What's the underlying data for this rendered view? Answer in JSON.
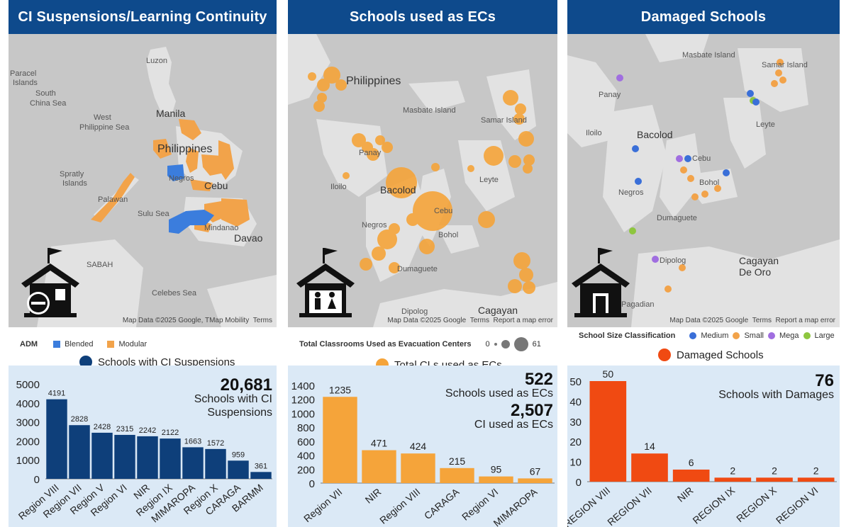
{
  "panels": {
    "p1": {
      "title": "CI Suspensions/Learning Continuity",
      "map_labels": {
        "luzon": "Luzon",
        "manila": "Manila",
        "philippines": "Philippines",
        "west_ps": "West",
        "west_ps2": "Philippine Sea",
        "scs": "South",
        "scs2": "China Sea",
        "paracel": "Paracel",
        "paracel2": "Islands",
        "spratly": "Spratly",
        "spratly2": "Islands",
        "palawan": "Palawan",
        "sulu": "Sulu Sea",
        "cebu": "Cebu",
        "davao": "Davao",
        "sabah": "SABAH",
        "celebes": "Celebes Sea",
        "mindanao": "Mindanao",
        "negros": "Negros"
      },
      "attribution": "Map Data ©2025 Google, TMap Mobility",
      "terms": "Terms",
      "legend": {
        "title": "ADM",
        "items": [
          {
            "label": "Blended",
            "color": "#3b7ddd"
          },
          {
            "label": "Modular",
            "color": "#f2a34a"
          }
        ]
      },
      "series_legend": {
        "label": "Schools with CI Suspensions",
        "color": "#0e3f7a"
      },
      "kpi": {
        "value": "20,681",
        "line1": "Schools with CI",
        "line2": "Suspensions"
      }
    },
    "p2": {
      "title": "Schools used as ECs",
      "map_labels": {
        "philippines": "Philippines",
        "masbate": "Masbate Island",
        "samar": "Samar Island",
        "panay": "Panay",
        "iloilo": "Iloilo",
        "bacolod": "Bacolod",
        "leyte": "Leyte",
        "cebu": "Cebu",
        "negros": "Negros",
        "bohol": "Bohol",
        "dumaguete": "Dumaguete",
        "dipolog": "Dipolog",
        "cagayan": "Cagayan"
      },
      "attribution": "Map Data ©2025 Google",
      "terms": "Terms",
      "report": "Report a map error",
      "legend": {
        "title": "Total Classrooms Used as Evacuation Centers",
        "min": "0",
        "max": "61"
      },
      "series_legend": {
        "label": "Total CLs used as ECs",
        "color": "#f5a43a"
      },
      "kpi": {
        "value": "522",
        "line1": "Schools used as ECs",
        "value2": "2,507",
        "line2": "CI used as ECs"
      }
    },
    "p3": {
      "title": "Damaged Schools",
      "map_labels": {
        "masbate": "Masbate Island",
        "samar": "Samar Island",
        "panay": "Panay",
        "iloilo": "Iloilo",
        "bacolod": "Bacolod",
        "leyte": "Leyte",
        "cebu": "Cebu",
        "negros": "Negros",
        "bohol": "Bohol",
        "dumaguete": "Dumaguete",
        "dipolog": "Dipolog",
        "cagayan1": "Cagayan",
        "cagayan2": "De Oro",
        "pagadian": "Pagadian"
      },
      "attribution": "Map Data ©2025 Google",
      "terms": "Terms",
      "report": "Report a map error",
      "legend": {
        "title": "School Size Classification",
        "items": [
          {
            "label": "Medium",
            "color": "#3a6fd8"
          },
          {
            "label": "Small",
            "color": "#f2a34a"
          },
          {
            "label": "Mega",
            "color": "#a06ee0"
          },
          {
            "label": "Large",
            "color": "#8ec63f"
          }
        ]
      },
      "series_legend": {
        "label": "Damaged Schools",
        "color": "#f04a12"
      },
      "kpi": {
        "value": "76",
        "line1": "Schools with Damages"
      }
    }
  },
  "chart_data": [
    {
      "type": "bar",
      "categories": [
        "Region VIII",
        "Region VII",
        "Region V",
        "Region VI",
        "NIR",
        "Region IX",
        "MIMAROPA",
        "Region X",
        "CARAGA",
        "BARMM"
      ],
      "values": [
        4191,
        2828,
        2428,
        2315,
        2242,
        2122,
        1663,
        1572,
        959,
        361
      ],
      "yticks": [
        "0",
        "1000",
        "2000",
        "3000",
        "4000",
        "5000"
      ],
      "ylim": [
        0,
        5000
      ],
      "color": "#0e3f7a"
    },
    {
      "type": "bar",
      "categories": [
        "Region VII",
        "NIR",
        "Region VIII",
        "CARAGA",
        "Region VI",
        "MIMAROPA"
      ],
      "values": [
        1235,
        471,
        424,
        215,
        95,
        67
      ],
      "yticks": [
        "0",
        "200",
        "400",
        "600",
        "800",
        "1000",
        "1200",
        "1400"
      ],
      "ylim": [
        0,
        1400
      ],
      "color": "#f5a43a"
    },
    {
      "type": "bar",
      "categories": [
        "REGION VIII",
        "REGION VII",
        "NIR",
        "REGION IX",
        "REGION X",
        "REGION VI"
      ],
      "values": [
        50,
        14,
        6,
        2,
        2,
        2
      ],
      "yticks": [
        "0",
        "10",
        "20",
        "30",
        "40",
        "50"
      ],
      "ylim": [
        0,
        50
      ],
      "color": "#f04a12"
    }
  ]
}
